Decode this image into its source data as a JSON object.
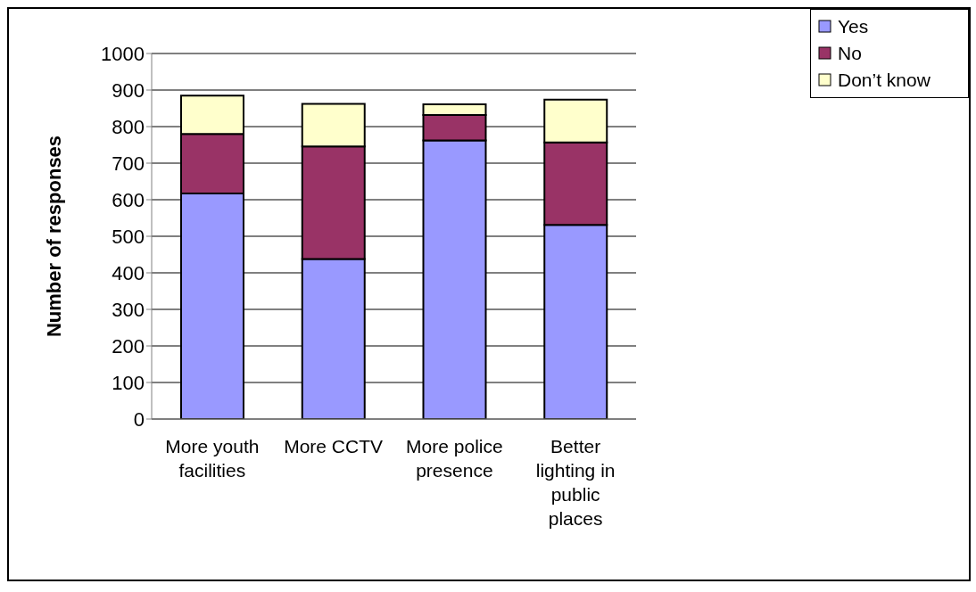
{
  "chart_data": {
    "type": "bar",
    "stacked": true,
    "ylabel": "Number of responses",
    "categories": [
      "More youth facilities",
      "More CCTV",
      "More police presence",
      "Better lighting in public places"
    ],
    "series": [
      {
        "name": "Yes",
        "color": "#9999ff",
        "values": [
          617,
          438,
          762,
          531
        ]
      },
      {
        "name": "No",
        "color": "#993366",
        "values": [
          163,
          308,
          70,
          226
        ]
      },
      {
        "name": "Don’t know",
        "color": "#ffffcc",
        "values": [
          105,
          116,
          29,
          117
        ]
      }
    ],
    "ylim": [
      0,
      1000
    ],
    "yticks": [
      0,
      100,
      200,
      300,
      400,
      500,
      600,
      700,
      800,
      900,
      1000
    ],
    "grid": "y",
    "legend": "top right"
  }
}
